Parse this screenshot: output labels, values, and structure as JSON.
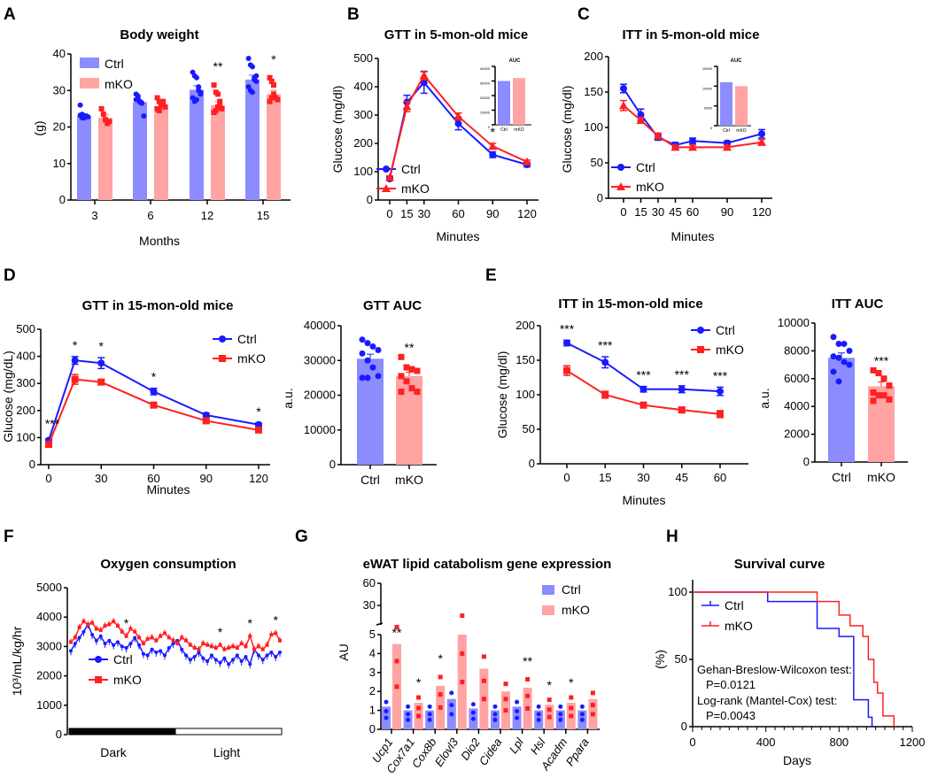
{
  "colors": {
    "ctrl_line": "#1a1aff",
    "mko_line": "#ff2020",
    "ctrl_bar": "#8c8cff",
    "mko_bar": "#ffa3a3"
  },
  "chart_data": [
    {
      "panel": "A",
      "type": "bar",
      "title": "Body weight",
      "xlabel": "Months",
      "ylabel": "(g)",
      "ylim": [
        0,
        40
      ],
      "yticks": [
        0,
        10,
        20,
        30,
        40
      ],
      "categories": [
        "3",
        "6",
        "12",
        "15"
      ],
      "legend": "top-left",
      "significance": [
        "",
        "",
        "**",
        "*"
      ],
      "series": [
        {
          "name": "Ctrl",
          "values": [
            23,
            26.8,
            30.2,
            33
          ],
          "sem": [
            0.6,
            0.5,
            1.1,
            1.2
          ],
          "points": [
            [
              26,
              23.5,
              22.5,
              23,
              22.8,
              23.2,
              22.5
            ],
            [
              29,
              28,
              27,
              26.5,
              23,
              27.5,
              28.5,
              26.8,
              26.5
            ],
            [
              35,
              34,
              33.5,
              31,
              29.5,
              28,
              27,
              27.5,
              30,
              29
            ],
            [
              38.8,
              37,
              36.5,
              33,
              32.5,
              31,
              30,
              29.5,
              33.5,
              34
            ]
          ]
        },
        {
          "name": "mKO",
          "values": [
            22.5,
            25.7,
            26,
            29
          ],
          "sem": [
            0.9,
            0.5,
            1.0,
            1.0
          ],
          "points": [
            [
              25,
              23.5,
              22,
              21,
              21.5
            ],
            [
              28,
              27,
              26.5,
              26,
              25.5,
              25,
              24.5,
              26,
              27
            ],
            [
              31.5,
              29.5,
              29,
              26,
              25,
              24,
              24.5,
              25.5,
              27
            ],
            [
              33.5,
              32.5,
              31.5,
              28,
              27.5,
              27,
              28,
              29
            ]
          ]
        }
      ]
    },
    {
      "panel": "B",
      "type": "line",
      "title": "GTT in 5-mon-old mice",
      "xlabel": "Minutes",
      "ylabel": "Glucose (mg/dl)",
      "ylim": [
        0,
        500
      ],
      "yticks": [
        0,
        100,
        200,
        300,
        400,
        500
      ],
      "xticks": [
        0,
        15,
        30,
        60,
        90,
        120
      ],
      "legend": "bottom-left",
      "significance": [
        {
          "x": 90,
          "text": "*"
        }
      ],
      "series": [
        {
          "name": "Ctrl",
          "marker": "circle",
          "x": [
            0,
            15,
            30,
            60,
            90,
            120
          ],
          "values": [
            75,
            345,
            415,
            270,
            160,
            125
          ],
          "sem": [
            5,
            25,
            38,
            22,
            10,
            8
          ]
        },
        {
          "name": "mKO",
          "marker": "triangle",
          "x": [
            0,
            15,
            30,
            60,
            90,
            120
          ],
          "values": [
            80,
            330,
            440,
            295,
            190,
            135
          ],
          "sem": [
            5,
            18,
            15,
            12,
            10,
            6
          ]
        }
      ],
      "inset": {
        "title": "AUC",
        "type": "bar",
        "ylim": [
          0,
          40000
        ],
        "yticks": [
          0,
          10000,
          20000,
          30000,
          40000
        ],
        "categories": [
          "Ctrl",
          "mKO"
        ],
        "values": [
          30000,
          32000
        ]
      }
    },
    {
      "panel": "C",
      "type": "line",
      "title": "ITT in 5-mon-old mice",
      "xlabel": "Minutes",
      "ylabel": "Glucose (mg/dl)",
      "ylim": [
        0,
        200
      ],
      "yticks": [
        0,
        50,
        100,
        150,
        200
      ],
      "xticks": [
        0,
        15,
        30,
        45,
        60,
        90,
        120
      ],
      "legend": "bottom-left",
      "series": [
        {
          "name": "Ctrl",
          "marker": "circle",
          "x": [
            0,
            15,
            30,
            45,
            60,
            90,
            120
          ],
          "values": [
            155,
            118,
            86,
            75,
            81,
            78,
            91
          ],
          "sem": [
            6,
            8,
            4,
            4,
            4,
            3,
            6
          ]
        },
        {
          "name": "mKO",
          "marker": "triangle",
          "x": [
            0,
            15,
            30,
            45,
            60,
            90,
            120
          ],
          "values": [
            131,
            110,
            88,
            72,
            72,
            72,
            79
          ],
          "sem": [
            7,
            4,
            4,
            3,
            3,
            3,
            4
          ]
        }
      ],
      "inset": {
        "title": "AUC",
        "type": "bar",
        "ylim": [
          0,
          15000
        ],
        "yticks": [
          0,
          5000,
          10000,
          15000
        ],
        "categories": [
          "Ctrl",
          "mKO"
        ],
        "values": [
          11000,
          10000
        ]
      }
    },
    {
      "panel": "D",
      "type": "line",
      "title": "GTT in 15-mon-old mice",
      "xlabel": "Minutes",
      "ylabel": "Glucose (mg/dL)",
      "ylim": [
        0,
        500
      ],
      "yticks": [
        0,
        100,
        200,
        300,
        400,
        500
      ],
      "xticks": [
        0,
        30,
        60,
        90,
        120
      ],
      "legend": "top-right",
      "significance": [
        {
          "x": 0,
          "text": "***"
        },
        {
          "x": 15,
          "text": "*"
        },
        {
          "x": 30,
          "text": "*"
        },
        {
          "x": 60,
          "text": "*"
        },
        {
          "x": 120,
          "text": "*"
        }
      ],
      "series": [
        {
          "name": "Ctrl",
          "marker": "circle",
          "x": [
            0,
            15,
            30,
            60,
            90,
            120
          ],
          "values": [
            90,
            385,
            375,
            270,
            183,
            148
          ],
          "sem": [
            5,
            14,
            20,
            12,
            8,
            6
          ]
        },
        {
          "name": "mKO",
          "marker": "square",
          "x": [
            0,
            15,
            30,
            60,
            90,
            120
          ],
          "values": [
            75,
            315,
            305,
            220,
            162,
            128
          ],
          "sem": [
            5,
            18,
            10,
            10,
            8,
            8
          ]
        }
      ]
    },
    {
      "panel": "D2",
      "type": "bar",
      "title": "GTT AUC",
      "ylabel": "a.u.",
      "ylim": [
        0,
        40000
      ],
      "yticks": [
        0,
        10000,
        20000,
        30000,
        40000
      ],
      "categories": [
        "Ctrl",
        "mKO"
      ],
      "values": [
        30500,
        25500
      ],
      "sem": [
        1300,
        1100
      ],
      "significance": [
        "",
        "**"
      ],
      "points": [
        [
          36000,
          35000,
          34000,
          33000,
          32000,
          30000,
          28000,
          25500,
          25000,
          25000
        ],
        [
          31000,
          28000,
          27500,
          27000,
          25500,
          24000,
          22000,
          21000,
          21000
        ]
      ]
    },
    {
      "panel": "E",
      "type": "line",
      "title": "ITT in 15-mon-old mice",
      "xlabel": "Minutes",
      "ylabel": "Glucose (mg/dl)",
      "ylim": [
        0,
        200
      ],
      "yticks": [
        0,
        50,
        100,
        150,
        200
      ],
      "xticks": [
        0,
        15,
        30,
        45,
        60
      ],
      "legend": "top-right",
      "significance": [
        {
          "x": 0,
          "text": "***"
        },
        {
          "x": 15,
          "text": "***"
        },
        {
          "x": 30,
          "text": "***"
        },
        {
          "x": 45,
          "text": "***"
        },
        {
          "x": 60,
          "text": "***"
        }
      ],
      "series": [
        {
          "name": "Ctrl",
          "marker": "circle",
          "x": [
            0,
            15,
            30,
            45,
            60
          ],
          "values": [
            175,
            147,
            108,
            108,
            105
          ],
          "sem": [
            4,
            8,
            4,
            5,
            6
          ]
        },
        {
          "name": "mKO",
          "marker": "square",
          "x": [
            0,
            15,
            30,
            45,
            60
          ],
          "values": [
            135,
            100,
            85,
            78,
            72
          ],
          "sem": [
            7,
            5,
            4,
            4,
            5
          ]
        }
      ]
    },
    {
      "panel": "E2",
      "type": "bar",
      "title": "ITT AUC",
      "ylabel": "a.u.",
      "ylim": [
        0,
        10000
      ],
      "yticks": [
        0,
        2000,
        4000,
        6000,
        8000,
        10000
      ],
      "categories": [
        "Ctrl",
        "mKO"
      ],
      "values": [
        7500,
        5450
      ],
      "sem": [
        350,
        320
      ],
      "significance": [
        "",
        "***"
      ],
      "points": [
        [
          9000,
          8500,
          8500,
          8000,
          7600,
          7500,
          7200,
          7000,
          6500,
          5800
        ],
        [
          6600,
          6400,
          6000,
          5500,
          5000,
          4800,
          4800,
          4500,
          4400
        ]
      ]
    },
    {
      "panel": "F",
      "type": "line",
      "title": "Oxygen consumption",
      "ylabel": "10³/mL/kg/hr",
      "ylim": [
        0,
        5000
      ],
      "yticks": [
        0,
        1000,
        2000,
        3000,
        4000,
        5000
      ],
      "phases": [
        "Dark",
        "Light"
      ],
      "legend": "bottom-left",
      "significance_indices": [
        13,
        35,
        42,
        48
      ],
      "significance_text": "*",
      "series": [
        {
          "name": "Ctrl",
          "marker": "circle",
          "values": [
            2850,
            3100,
            3300,
            3500,
            3750,
            3400,
            3200,
            3350,
            3100,
            3200,
            3050,
            3150,
            3000,
            2950,
            3100,
            3300,
            3050,
            2750,
            2700,
            2900,
            2800,
            2850,
            2700,
            2950,
            3100,
            3200,
            2900,
            2700,
            2550,
            2650,
            2800,
            2600,
            2500,
            2700,
            2550,
            2450,
            2600,
            2400,
            2550,
            2700,
            2500,
            2650,
            2400,
            2900,
            2700,
            2550,
            2700,
            2800,
            2650,
            2800
          ]
        },
        {
          "name": "mKO",
          "marker": "square",
          "values": [
            3150,
            3300,
            3650,
            3850,
            3750,
            3800,
            3600,
            3550,
            3700,
            3750,
            3850,
            3700,
            3500,
            3350,
            3600,
            3500,
            3300,
            3100,
            3250,
            3300,
            3200,
            3350,
            3450,
            3300,
            3200,
            3100,
            3300,
            3200,
            3050,
            2950,
            2900,
            3100,
            3050,
            3000,
            2950,
            3050,
            2900,
            2950,
            3000,
            2950,
            3100,
            3000,
            3350,
            2900,
            3000,
            2900,
            3050,
            3400,
            3450,
            3200
          ]
        }
      ]
    },
    {
      "panel": "G",
      "type": "bar",
      "title": "eWAT lipid catabolism gene expression",
      "ylabel": "AU",
      "yticks_lower": [
        0,
        1,
        2,
        3,
        4,
        5
      ],
      "yticks_upper": [
        30,
        60
      ],
      "axis_break": [
        5,
        30
      ],
      "categories": [
        "Ucp1",
        "Cox7a1",
        "Cox8b",
        "Elovl3",
        "Dio2",
        "Cidea",
        "Lpl",
        "Hsl",
        "Acadm",
        "Ppara"
      ],
      "legend": "top-right",
      "significance": [
        "**",
        "*",
        "*",
        "",
        "",
        "",
        "**",
        "*",
        "*",
        ""
      ],
      "series": [
        {
          "name": "Ctrl",
          "values": [
            1.2,
            1.0,
            1.0,
            1.6,
            1.1,
            1.0,
            1.2,
            1.0,
            1.0,
            1.0
          ]
        },
        {
          "name": "mKO",
          "values": [
            4.5,
            1.4,
            2.3,
            5,
            3.2,
            2.0,
            2.2,
            1.3,
            1.4,
            1.6
          ]
        }
      ]
    },
    {
      "panel": "H",
      "type": "line",
      "title": "Survival curve",
      "xlabel": "Days",
      "ylabel": "(%)",
      "xlim": [
        0,
        1200
      ],
      "xticks": [
        0,
        400,
        800,
        1200
      ],
      "ylim": [
        0,
        100
      ],
      "yticks": [
        0,
        50,
        100
      ],
      "legend": "top-left",
      "annotations": [
        "Gehan-Breslow-Wilcoxon test:",
        "P=0.0121",
        "Log-rank (Mantel-Cox) test:",
        "P=0.0043"
      ],
      "series": [
        {
          "name": "Ctrl",
          "x": [
            0,
            410,
            680,
            800,
            880,
            960,
            980
          ],
          "values": [
            100,
            93,
            73,
            67,
            20,
            7,
            0
          ]
        },
        {
          "name": "mKO",
          "x": [
            0,
            680,
            800,
            860,
            930,
            960,
            990,
            1010,
            1040,
            1100
          ],
          "values": [
            100,
            93,
            83,
            75,
            67,
            50,
            33,
            25,
            8,
            0
          ]
        }
      ]
    }
  ]
}
